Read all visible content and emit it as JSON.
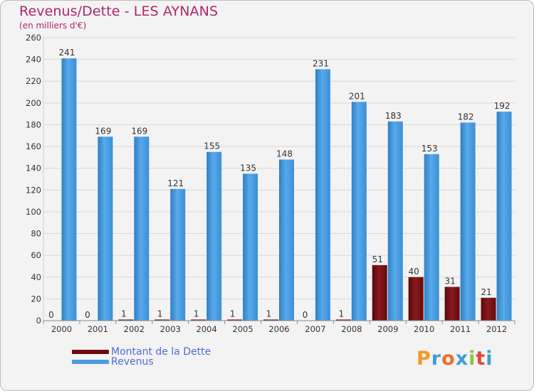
{
  "header": {
    "title": "Revenus/Dette - LES AYNANS",
    "subtitle": "(en milliers d'€)"
  },
  "chart_data": {
    "type": "bar",
    "categories": [
      "2000",
      "2001",
      "2002",
      "2003",
      "2004",
      "2005",
      "2006",
      "2007",
      "2008",
      "2009",
      "2010",
      "2011",
      "2012"
    ],
    "series": [
      {
        "name": "Montant de la Dette",
        "color": "#6e0a0f",
        "values": [
          0,
          0,
          1,
          1,
          1,
          1,
          1,
          0,
          1,
          51,
          40,
          31,
          21
        ]
      },
      {
        "name": "Revenus",
        "color": "#4a9be0",
        "values": [
          241,
          169,
          169,
          121,
          155,
          135,
          148,
          231,
          201,
          183,
          153,
          182,
          192
        ]
      }
    ],
    "yticks": [
      0,
      20,
      40,
      60,
      80,
      100,
      120,
      140,
      160,
      180,
      200,
      220,
      240,
      260
    ],
    "ylim": [
      0,
      260
    ],
    "grid": true,
    "legend": "bottom-left"
  },
  "legend": [
    {
      "label": "Montant de la Dette",
      "color": "#6e0a0f"
    },
    {
      "label": "Revenus",
      "color": "#4a9be0"
    }
  ],
  "logo": {
    "text": "Proxiti",
    "colors": [
      "#f39a22",
      "#3d9ed6",
      "#f06b2a",
      "#3d9ed6",
      "#8bc43f",
      "#e8433b",
      "#3d9ed6"
    ]
  }
}
